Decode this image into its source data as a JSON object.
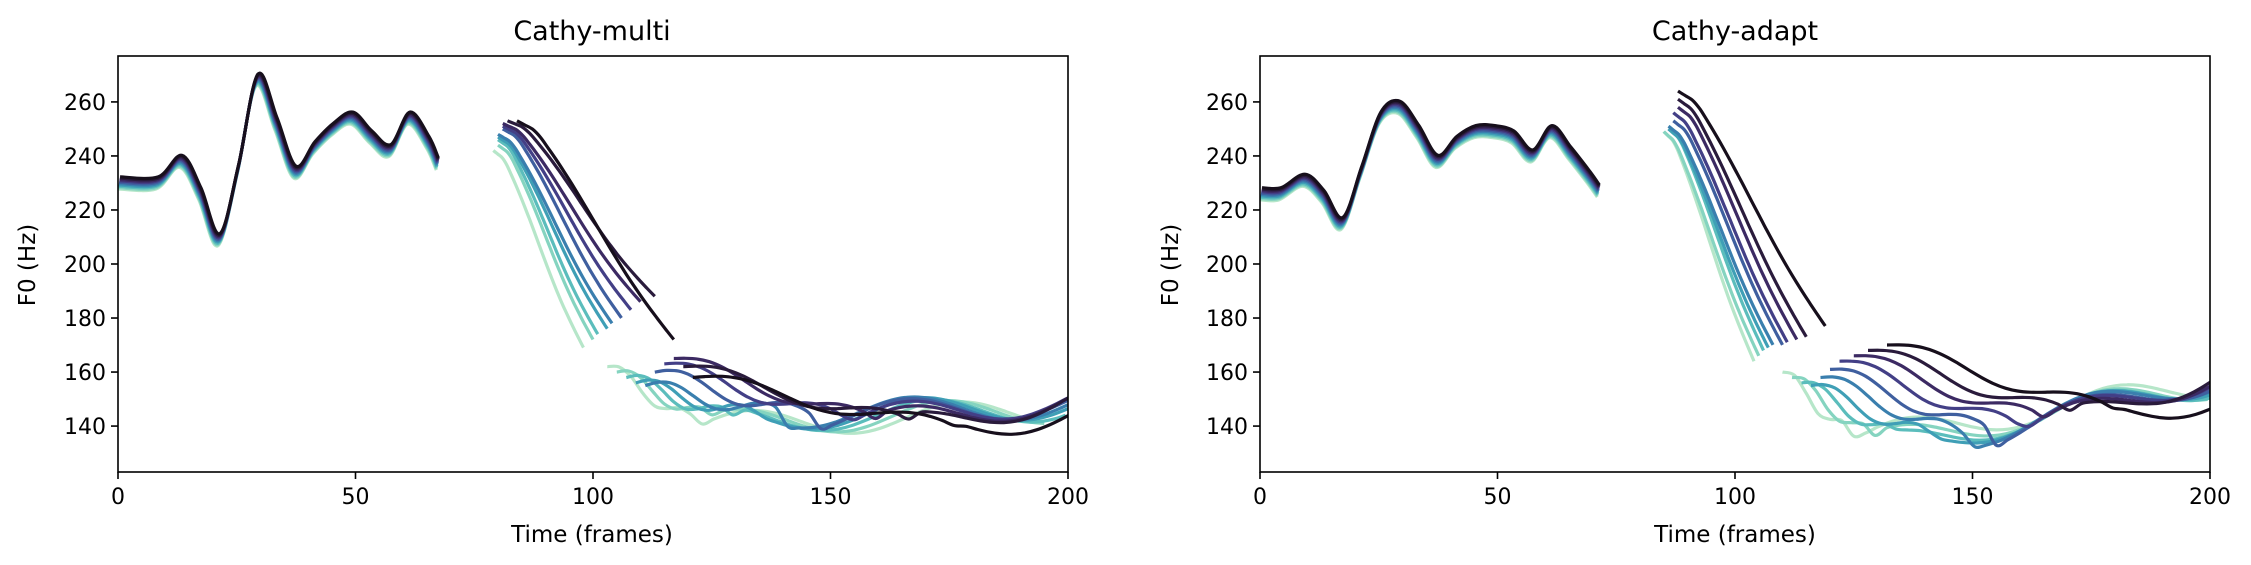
{
  "chart_data": [
    {
      "type": "line",
      "title": "Cathy-multi",
      "xlabel": "Time (frames)",
      "ylabel": "F0 (Hz)",
      "xlim": [
        0,
        200
      ],
      "ylim": [
        123,
        277
      ],
      "xticks": [
        0,
        50,
        100,
        150,
        200
      ],
      "yticks": [
        140,
        160,
        180,
        200,
        220,
        240,
        260
      ],
      "grid": false,
      "palette": [
        "#b6e6c9",
        "#85d4c0",
        "#5bbdbc",
        "#3f9fb6",
        "#3a7fae",
        "#3f5f9f",
        "#433f86",
        "#3c2a63",
        "#2a1b3c",
        "#170f1c"
      ],
      "shared_segments": [
        {
          "x": [
            0,
            8,
            13,
            17,
            21,
            25,
            29,
            33,
            37,
            41,
            45,
            49,
            53,
            57,
            61,
            65,
            67
          ],
          "y": [
            230,
            230,
            238,
            226,
            209,
            235,
            268,
            252,
            234,
            243,
            250,
            254,
            247,
            242,
            254,
            245,
            237
          ]
        }
      ],
      "series": [
        {
          "shift": 0,
          "drop": [
            79,
            98,
            242,
            169
          ],
          "tail": [
            103,
            122,
            162,
            140,
            145
          ]
        },
        {
          "shift": 2,
          "drop": [
            80,
            100,
            244,
            172
          ],
          "tail": [
            105,
            126,
            160,
            141,
            146
          ]
        },
        {
          "shift": 4,
          "drop": [
            80,
            101,
            246,
            174
          ],
          "tail": [
            107,
            130,
            158,
            142,
            147
          ]
        },
        {
          "shift": 6,
          "drop": [
            80,
            103,
            247,
            176
          ],
          "tail": [
            109,
            135,
            156,
            143,
            148
          ]
        },
        {
          "shift": 8,
          "drop": [
            80,
            104,
            248,
            178
          ],
          "tail": [
            111,
            140,
            155,
            144,
            148
          ]
        },
        {
          "shift": 11,
          "drop": [
            81,
            106,
            250,
            180
          ],
          "tail": [
            113,
            146,
            160,
            143,
            149
          ]
        },
        {
          "shift": 14,
          "drop": [
            81,
            108,
            251,
            183
          ],
          "tail": [
            115,
            153,
            163,
            142,
            150
          ]
        },
        {
          "shift": 18,
          "drop": [
            81,
            110,
            252,
            186
          ],
          "tail": [
            117,
            160,
            165,
            141,
            150
          ]
        },
        {
          "shift": 22,
          "drop": [
            82,
            113,
            253,
            188
          ],
          "tail": [
            119,
            168,
            162,
            140,
            151
          ]
        },
        {
          "shift": 27,
          "drop": [
            84,
            117,
            253,
            172
          ],
          "tail": [
            121,
            176,
            158,
            139,
            145
          ]
        }
      ]
    },
    {
      "type": "line",
      "title": "Cathy-adapt",
      "xlabel": "Time (frames)",
      "ylabel": "F0 (Hz)",
      "xlim": [
        0,
        200
      ],
      "ylim": [
        123,
        277
      ],
      "xticks": [
        0,
        50,
        100,
        150,
        200
      ],
      "yticks": [
        140,
        160,
        180,
        200,
        220,
        240,
        260
      ],
      "grid": false,
      "palette": [
        "#b6e6c9",
        "#85d4c0",
        "#5bbdbc",
        "#3f9fb6",
        "#3a7fae",
        "#3f5f9f",
        "#433f86",
        "#3c2a63",
        "#2a1b3c",
        "#170f1c"
      ],
      "shared_segments": [
        {
          "x": [
            0,
            4,
            9,
            13,
            17,
            21,
            25,
            29,
            33,
            37,
            41,
            45,
            49,
            53,
            57,
            61,
            65,
            69,
            71
          ],
          "y": [
            226,
            226,
            231,
            225,
            215,
            234,
            254,
            258,
            249,
            238,
            245,
            249,
            249,
            247,
            240,
            249,
            241,
            232,
            227
          ]
        }
      ],
      "series": [
        {
          "shift": 0,
          "drop": [
            85,
            104,
            249,
            164
          ],
          "tail": [
            110,
            125,
            160,
            135,
            154
          ]
        },
        {
          "shift": 2,
          "drop": [
            85,
            105,
            249,
            166
          ],
          "tail": [
            112,
            130,
            158,
            134,
            155
          ]
        },
        {
          "shift": 4,
          "drop": [
            86,
            106,
            250,
            168
          ],
          "tail": [
            114,
            136,
            156,
            134,
            156
          ]
        },
        {
          "shift": 6,
          "drop": [
            86,
            107,
            250,
            169
          ],
          "tail": [
            116,
            142,
            155,
            135,
            157
          ]
        },
        {
          "shift": 8,
          "drop": [
            86,
            108,
            251,
            170
          ],
          "tail": [
            118,
            148,
            158,
            136,
            158
          ]
        },
        {
          "shift": 10,
          "drop": [
            87,
            110,
            253,
            170
          ],
          "tail": [
            120,
            154,
            161,
            137,
            158
          ]
        },
        {
          "shift": 12,
          "drop": [
            87,
            111,
            256,
            171
          ],
          "tail": [
            122,
            160,
            164,
            139,
            159
          ]
        },
        {
          "shift": 14,
          "drop": [
            88,
            113,
            258,
            172
          ],
          "tail": [
            125,
            166,
            166,
            141,
            159
          ]
        },
        {
          "shift": 17,
          "drop": [
            88,
            115,
            261,
            173
          ],
          "tail": [
            128,
            172,
            168,
            143,
            160
          ]
        },
        {
          "shift": 21,
          "drop": [
            88,
            119,
            264,
            177
          ],
          "tail": [
            132,
            180,
            170,
            145,
            150
          ]
        }
      ]
    }
  ]
}
